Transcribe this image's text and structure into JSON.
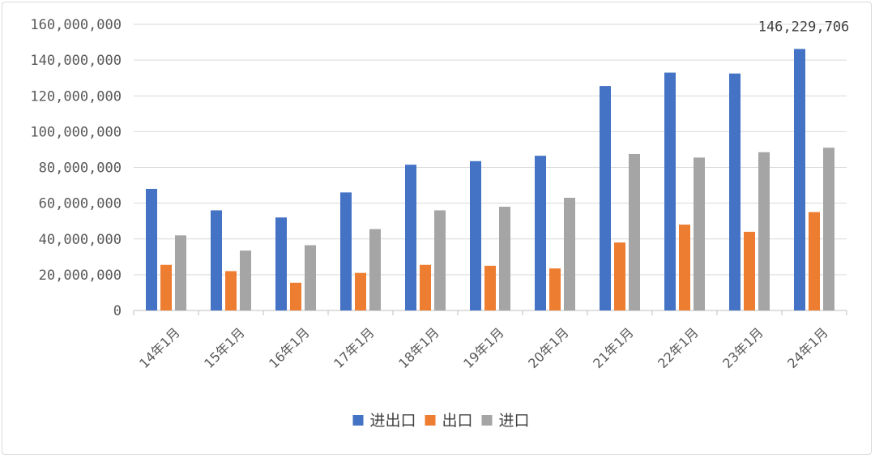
{
  "chart_data": {
    "type": "bar",
    "title": "",
    "xlabel": "",
    "ylabel": "",
    "categories": [
      "14年1月",
      "15年1月",
      "16年1月",
      "17年1月",
      "18年1月",
      "19年1月",
      "20年1月",
      "21年1月",
      "22年1月",
      "23年1月",
      "24年1月"
    ],
    "ylim": [
      0,
      160000000
    ],
    "yticks": [
      0,
      20000000,
      40000000,
      60000000,
      80000000,
      100000000,
      120000000,
      140000000,
      160000000
    ],
    "ytick_labels": [
      "0",
      "20,000,000",
      "40,000,000",
      "60,000,000",
      "80,000,000",
      "100,000,000",
      "120,000,000",
      "140,000,000",
      "160,000,000"
    ],
    "grid": true,
    "legend_position": "bottom",
    "series": [
      {
        "name": "进出口",
        "color": "#4472C4",
        "values": [
          68000000,
          56000000,
          52000000,
          66000000,
          81500000,
          83500000,
          86500000,
          125500000,
          133000000,
          132500000,
          146229706
        ]
      },
      {
        "name": "出口",
        "color": "#ED7D31",
        "values": [
          25500000,
          22000000,
          15500000,
          21000000,
          25500000,
          25000000,
          23500000,
          38000000,
          48000000,
          44000000,
          55000000
        ]
      },
      {
        "name": "进口",
        "color": "#A5A5A5",
        "values": [
          42000000,
          33500000,
          36500000,
          45500000,
          56000000,
          58000000,
          63000000,
          87500000,
          85500000,
          88500000,
          91000000
        ]
      }
    ],
    "data_labels": [
      {
        "series": 0,
        "index": 10,
        "text": "146,229,706"
      }
    ]
  }
}
